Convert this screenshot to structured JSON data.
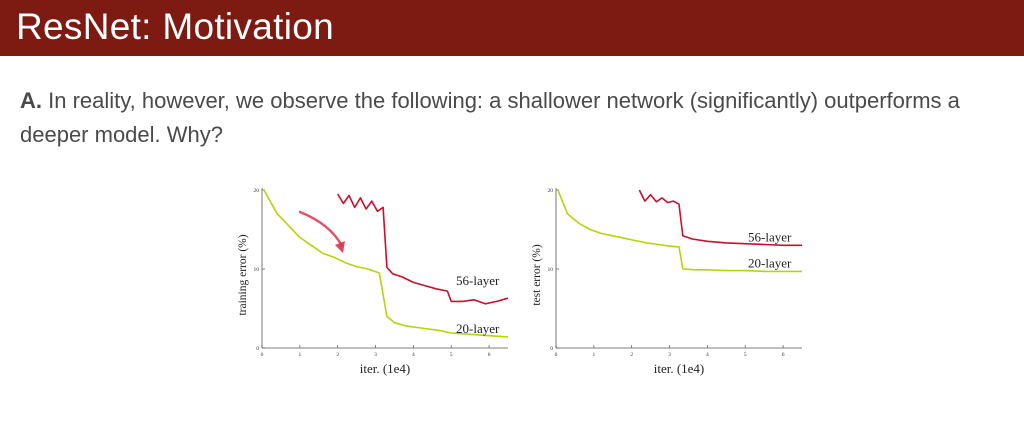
{
  "slide": {
    "title": "ResNet: Motivation",
    "body_lead": "A.",
    "body_text": " In reality, however, we observe the following: a shallower network (significantly) outperforms a deeper model. Why?"
  },
  "colors": {
    "title_bar": "#7d1a12",
    "series_56": "#c8102e",
    "series_20": "#b5d40a",
    "annotation_arrow": "#e0314b"
  },
  "chart_data": [
    {
      "type": "line",
      "xlabel": "iter. (1e4)",
      "ylabel": "training error (%)",
      "xlim": [
        0,
        6.5
      ],
      "ylim": [
        0,
        20
      ],
      "x_ticks": [
        0,
        1,
        2,
        3,
        4,
        5,
        6
      ],
      "y_ticks": [
        0,
        10,
        20
      ],
      "y_tick_labels": [
        "0",
        "10",
        "20"
      ],
      "series": [
        {
          "name": "56-layer",
          "x": [
            2.0,
            2.15,
            2.3,
            2.45,
            2.6,
            2.75,
            2.9,
            3.05,
            3.2,
            3.3,
            3.45,
            3.7,
            4.0,
            4.3,
            4.6,
            4.9,
            5.0,
            5.3,
            5.6,
            5.9,
            6.2,
            6.5
          ],
          "values": [
            19.5,
            18.3,
            19.3,
            17.8,
            19.0,
            17.6,
            18.6,
            17.3,
            17.8,
            10.2,
            9.4,
            9.0,
            8.3,
            7.9,
            7.5,
            7.2,
            5.9,
            5.9,
            6.1,
            5.6,
            5.9,
            6.3
          ]
        },
        {
          "name": "20-layer",
          "x": [
            0.05,
            0.4,
            0.7,
            1.0,
            1.3,
            1.6,
            1.9,
            2.2,
            2.5,
            2.8,
            3.1,
            3.3,
            3.5,
            3.8,
            4.1,
            4.4,
            4.7,
            5.0,
            5.3,
            5.6,
            5.9,
            6.2,
            6.5
          ],
          "values": [
            20.0,
            17.0,
            15.5,
            14.0,
            13.0,
            12.0,
            11.5,
            10.8,
            10.3,
            10.0,
            9.5,
            4.0,
            3.2,
            2.8,
            2.6,
            2.4,
            2.2,
            1.9,
            1.8,
            1.7,
            1.6,
            1.5,
            1.4
          ]
        }
      ]
    },
    {
      "type": "line",
      "xlabel": "iter. (1e4)",
      "ylabel": "test error (%)",
      "xlim": [
        0,
        6.5
      ],
      "ylim": [
        0,
        20
      ],
      "x_ticks": [
        0,
        1,
        2,
        3,
        4,
        5,
        6
      ],
      "y_ticks": [
        0,
        10,
        20
      ],
      "y_tick_labels": [
        "0",
        "10",
        "20"
      ],
      "series": [
        {
          "name": "56-layer",
          "x": [
            2.2,
            2.35,
            2.5,
            2.65,
            2.8,
            2.95,
            3.1,
            3.25,
            3.35,
            3.6,
            4.0,
            4.5,
            5.0,
            5.5,
            6.0,
            6.5
          ],
          "values": [
            20.0,
            18.6,
            19.4,
            18.5,
            19.0,
            18.4,
            18.6,
            18.2,
            14.2,
            13.8,
            13.5,
            13.3,
            13.2,
            13.1,
            13.0,
            13.0
          ]
        },
        {
          "name": "20-layer",
          "x": [
            0.05,
            0.3,
            0.6,
            0.9,
            1.2,
            1.5,
            1.8,
            2.1,
            2.4,
            2.7,
            3.0,
            3.25,
            3.35,
            3.7,
            4.0,
            4.5,
            5.0,
            5.5,
            6.0,
            6.5
          ],
          "values": [
            20.0,
            17.0,
            15.8,
            15.0,
            14.5,
            14.2,
            13.9,
            13.6,
            13.3,
            13.1,
            12.9,
            12.8,
            10.0,
            9.9,
            9.9,
            9.8,
            9.8,
            9.7,
            9.7,
            9.7
          ]
        }
      ]
    }
  ]
}
